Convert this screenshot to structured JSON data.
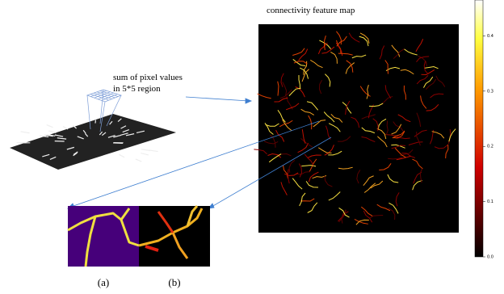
{
  "feature_map": {
    "title": "connectivity feature map"
  },
  "annotation": [
    "sum of pixel values",
    "in 5*5 region"
  ],
  "colorbar": {
    "clim": [
      0,
      0.465
    ],
    "ticks": [
      {
        "value": 0,
        "label": "0.0"
      },
      0.1,
      0.2,
      0.3,
      0.4
    ]
  },
  "panels": [
    {
      "label": "(a)"
    },
    {
      "label": "(b)"
    }
  ]
}
